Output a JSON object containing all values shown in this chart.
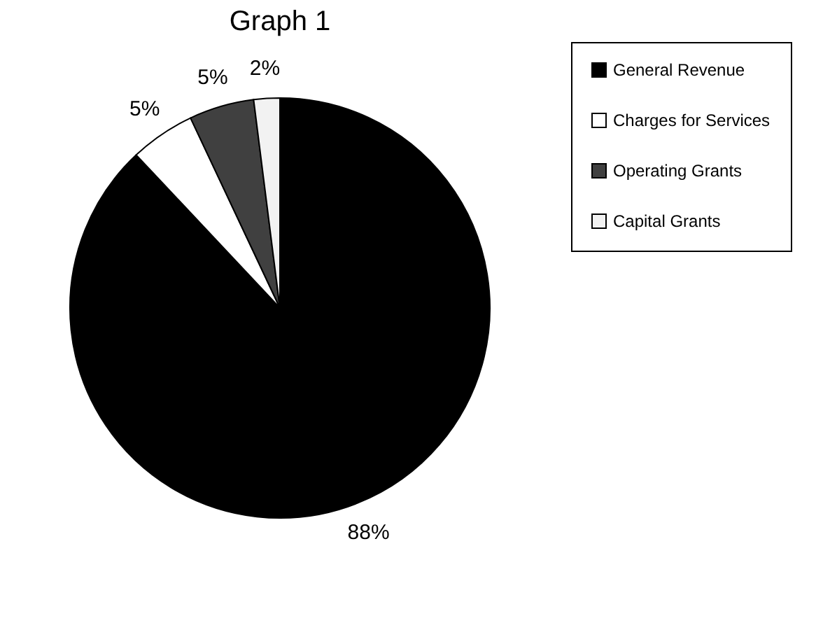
{
  "chart_data": {
    "type": "pie",
    "title": "Graph 1",
    "categories": [
      "General Revenue",
      "Charges for Services",
      "Operating Grants",
      "Capital Grants"
    ],
    "values": [
      88,
      5,
      5,
      2
    ],
    "colors": [
      "#000000",
      "#ffffff",
      "#404040",
      "#f2f2f2"
    ],
    "value_labels": [
      "88%",
      "5%",
      "5%",
      "2%"
    ],
    "legend": "right"
  }
}
